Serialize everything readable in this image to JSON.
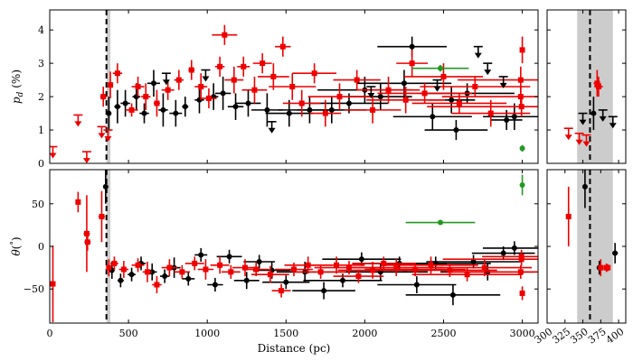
{
  "chart_data": {
    "type": "scatter",
    "description": "Four-panel scatter with error bars: polarization fraction p_d (%) and polarization angle theta (deg) versus distance (pc); right-hand panels zoom into 300-410 pc. Vertical dashed line marks cloud distance, grey band its uncertainty.",
    "xlabel": "Distance (pc)",
    "colors": {
      "black_series": "#000000",
      "red_series": "#ee0000",
      "green_series": "#229922",
      "band": "#cccccc"
    },
    "marker_line": {
      "x": 360,
      "band": [
        342,
        392
      ],
      "band_main": [
        360,
        385
      ]
    },
    "panels": [
      {
        "id": "top-main",
        "ylabel": "p_d (%)",
        "xlim": [
          0,
          3100
        ],
        "ylim": [
          0,
          4.6
        ],
        "xticks": [
          0,
          500,
          1000,
          1500,
          2000,
          2500,
          3000
        ],
        "xticklabels": [],
        "yticks": [
          0,
          1,
          2,
          3,
          4
        ],
        "yticklabels": [
          "0",
          "1",
          "2",
          "3",
          "4"
        ]
      },
      {
        "id": "top-zoom",
        "xlim": [
          300,
          410
        ],
        "ylim": [
          0,
          4.6
        ],
        "xticks": [
          300,
          350,
          400
        ],
        "xticklabels": [],
        "yticks": [
          0,
          1,
          2,
          3,
          4
        ],
        "yticklabels": []
      },
      {
        "id": "bottom-main",
        "ylabel": "theta (deg)",
        "xlim": [
          0,
          3100
        ],
        "ylim": [
          -90,
          90
        ],
        "xticks": [
          0,
          500,
          1000,
          1500,
          2000,
          2500,
          3000
        ],
        "xticklabels": [
          "0",
          "500",
          "1000",
          "1500",
          "2000",
          "2500",
          "3000"
        ],
        "yticks": [
          -50,
          0,
          50
        ],
        "yticklabels": [
          "−50",
          "0",
          "50"
        ]
      },
      {
        "id": "bottom-zoom",
        "xlim": [
          300,
          410
        ],
        "ylim": [
          -90,
          90
        ],
        "xticks": [
          300,
          325,
          350,
          375,
          400
        ],
        "xticklabels": [
          "300",
          "325",
          "350",
          "375",
          "400"
        ],
        "yticks": [
          -50,
          0,
          50
        ],
        "yticklabels": []
      }
    ],
    "pd_upper_limits_red": [
      [
        20,
        0.5
      ],
      [
        180,
        1.45
      ],
      [
        235,
        0.35
      ],
      [
        330,
        1.1
      ],
      [
        370,
        1.0
      ]
    ],
    "pd_upper_limits_black": [
      [
        740,
        2.7
      ],
      [
        990,
        2.8
      ],
      [
        1410,
        1.25
      ],
      [
        2040,
        2.3
      ],
      [
        2460,
        2.5
      ],
      [
        2720,
        3.5
      ],
      [
        2780,
        3.0
      ],
      [
        2880,
        2.6
      ]
    ],
    "pd_green": [
      [
        2480,
        2.85,
        180,
        0.1
      ],
      [
        3000,
        0.45,
        0,
        0.1
      ]
    ],
    "pd_red_points": [
      [
        340,
        2.0,
        20,
        0.3
      ],
      [
        385,
        2.35,
        15,
        0.4
      ],
      [
        430,
        2.7,
        30,
        0.3
      ],
      [
        520,
        1.6,
        40,
        0.2
      ],
      [
        560,
        2.3,
        40,
        0.3
      ],
      [
        610,
        2.0,
        30,
        0.4
      ],
      [
        680,
        1.8,
        20,
        0.4
      ],
      [
        750,
        2.2,
        40,
        0.3
      ],
      [
        820,
        2.5,
        30,
        0.3
      ],
      [
        900,
        2.8,
        20,
        0.3
      ],
      [
        960,
        2.3,
        40,
        0.4
      ],
      [
        1010,
        1.95,
        50,
        0.3
      ],
      [
        1080,
        2.9,
        30,
        0.3
      ],
      [
        1110,
        3.85,
        80,
        0.3
      ],
      [
        1170,
        2.5,
        60,
        0.4
      ],
      [
        1230,
        2.9,
        40,
        0.3
      ],
      [
        1300,
        2.2,
        80,
        0.4
      ],
      [
        1350,
        3.0,
        60,
        0.3
      ],
      [
        1420,
        2.6,
        100,
        0.4
      ],
      [
        1480,
        3.5,
        50,
        0.3
      ],
      [
        1540,
        2.3,
        150,
        0.4
      ],
      [
        1600,
        1.8,
        120,
        0.4
      ],
      [
        1680,
        2.7,
        140,
        0.3
      ],
      [
        1750,
        1.5,
        100,
        0.4
      ],
      [
        1840,
        2.0,
        200,
        0.4
      ],
      [
        1950,
        2.5,
        150,
        0.3
      ],
      [
        2050,
        1.6,
        180,
        0.4
      ],
      [
        2150,
        2.2,
        200,
        0.4
      ],
      [
        2260,
        1.9,
        250,
        0.4
      ],
      [
        2300,
        3.0,
        100,
        0.4
      ],
      [
        2380,
        2.1,
        300,
        0.3
      ],
      [
        2500,
        2.6,
        250,
        0.4
      ],
      [
        2600,
        1.8,
        300,
        0.3
      ],
      [
        2700,
        2.3,
        350,
        0.3
      ],
      [
        2800,
        1.5,
        250,
        0.4
      ],
      [
        2990,
        2.5,
        400,
        0.4
      ],
      [
        3000,
        3.4,
        10,
        0.4
      ],
      [
        2990,
        2.0,
        500,
        0.3
      ],
      [
        2995,
        1.7,
        600,
        0.3
      ]
    ],
    "pd_black_points": [
      [
        375,
        1.5,
        15,
        0.5
      ],
      [
        430,
        1.7,
        20,
        0.5
      ],
      [
        480,
        1.8,
        30,
        0.4
      ],
      [
        550,
        2.0,
        25,
        0.4
      ],
      [
        600,
        1.5,
        30,
        0.3
      ],
      [
        660,
        2.4,
        40,
        0.4
      ],
      [
        720,
        1.6,
        30,
        0.5
      ],
      [
        800,
        1.5,
        40,
        0.4
      ],
      [
        860,
        1.7,
        20,
        0.3
      ],
      [
        950,
        1.9,
        30,
        0.4
      ],
      [
        1040,
        2.0,
        30,
        0.4
      ],
      [
        1100,
        2.1,
        50,
        0.5
      ],
      [
        1180,
        1.7,
        50,
        0.4
      ],
      [
        1260,
        1.8,
        80,
        0.4
      ],
      [
        1380,
        1.6,
        100,
        0.5
      ],
      [
        1520,
        1.5,
        150,
        0.4
      ],
      [
        1650,
        1.6,
        200,
        0.4
      ],
      [
        1790,
        1.6,
        220,
        0.4
      ],
      [
        1900,
        1.8,
        250,
        0.3
      ],
      [
        2000,
        2.2,
        300,
        0.4
      ],
      [
        2100,
        2.0,
        200,
        0.4
      ],
      [
        2250,
        2.4,
        300,
        0.4
      ],
      [
        2300,
        3.5,
        220,
        0.3
      ],
      [
        2430,
        1.4,
        250,
        0.4
      ],
      [
        2550,
        1.9,
        150,
        0.4
      ],
      [
        2580,
        1.0,
        200,
        0.3
      ],
      [
        2650,
        2.1,
        300,
        0.3
      ],
      [
        2900,
        1.3,
        100,
        0.3
      ],
      [
        2950,
        1.4,
        200,
        0.4
      ]
    ],
    "pd_zoom_red": [
      [
        330,
        1.05,
        0,
        0.3,
        "lim"
      ],
      [
        345,
        0.9,
        0,
        0.3,
        "lim"
      ],
      [
        370,
        2.4,
        5,
        0.4,
        "pt"
      ],
      [
        372,
        2.3,
        6,
        0.3,
        "pt"
      ],
      [
        355,
        0.85,
        0,
        0.3,
        "lim"
      ]
    ],
    "pd_zoom_black": [
      [
        350,
        1.5,
        0,
        0.4,
        "lim"
      ],
      [
        365,
        1.5,
        2,
        0.5,
        "pt"
      ],
      [
        378,
        1.6,
        0,
        0.3,
        "lim"
      ],
      [
        392,
        1.4,
        0,
        0.4,
        "lim"
      ]
    ],
    "theta_red_points": [
      [
        20,
        -44,
        10,
        45
      ],
      [
        180,
        52,
        15,
        12
      ],
      [
        235,
        15,
        20,
        45
      ],
      [
        240,
        5,
        20,
        10
      ],
      [
        330,
        35,
        20,
        30
      ],
      [
        375,
        -25,
        15,
        10
      ],
      [
        410,
        -20,
        25,
        8
      ],
      [
        470,
        -27,
        30,
        10
      ],
      [
        560,
        -22,
        40,
        8
      ],
      [
        620,
        -30,
        30,
        12
      ],
      [
        680,
        -45,
        30,
        10
      ],
      [
        760,
        -25,
        50,
        10
      ],
      [
        840,
        -30,
        50,
        8
      ],
      [
        920,
        -20,
        60,
        8
      ],
      [
        990,
        -27,
        50,
        12
      ],
      [
        1080,
        -22,
        60,
        10
      ],
      [
        1150,
        -30,
        60,
        8
      ],
      [
        1240,
        -25,
        80,
        10
      ],
      [
        1310,
        -27,
        80,
        8
      ],
      [
        1400,
        -33,
        120,
        10
      ],
      [
        1470,
        -52,
        60,
        8
      ],
      [
        1550,
        -27,
        120,
        8
      ],
      [
        1640,
        -22,
        150,
        10
      ],
      [
        1720,
        -30,
        160,
        8
      ],
      [
        1820,
        -22,
        180,
        10
      ],
      [
        1900,
        -25,
        220,
        8
      ],
      [
        1960,
        -35,
        160,
        8
      ],
      [
        2050,
        -28,
        220,
        10
      ],
      [
        2120,
        -20,
        200,
        8
      ],
      [
        2200,
        -25,
        300,
        10
      ],
      [
        2320,
        -27,
        320,
        8
      ],
      [
        2420,
        -22,
        300,
        10
      ],
      [
        2540,
        -28,
        300,
        8
      ],
      [
        2650,
        -33,
        350,
        8
      ],
      [
        2760,
        -25,
        300,
        10
      ],
      [
        2990,
        -30,
        450,
        8
      ],
      [
        2995,
        -15,
        500,
        8
      ],
      [
        3000,
        -55,
        10,
        8
      ],
      [
        2995,
        -12,
        250,
        8
      ]
    ],
    "theta_black_points": [
      [
        355,
        70,
        8,
        20
      ],
      [
        395,
        -28,
        15,
        10
      ],
      [
        450,
        -40,
        20,
        8
      ],
      [
        520,
        -33,
        25,
        8
      ],
      [
        580,
        -20,
        30,
        8
      ],
      [
        650,
        -30,
        30,
        10
      ],
      [
        730,
        -35,
        30,
        8
      ],
      [
        790,
        -25,
        40,
        12
      ],
      [
        880,
        -38,
        40,
        8
      ],
      [
        960,
        -10,
        40,
        8
      ],
      [
        1050,
        -45,
        50,
        8
      ],
      [
        1140,
        -12,
        80,
        8
      ],
      [
        1250,
        -40,
        80,
        10
      ],
      [
        1330,
        -18,
        100,
        8
      ],
      [
        1410,
        -28,
        120,
        10
      ],
      [
        1500,
        -42,
        150,
        8
      ],
      [
        1620,
        -30,
        180,
        12
      ],
      [
        1740,
        -52,
        200,
        10
      ],
      [
        1860,
        -40,
        250,
        8
      ],
      [
        1980,
        -15,
        250,
        8
      ],
      [
        2100,
        -30,
        300,
        10
      ],
      [
        2220,
        -20,
        300,
        8
      ],
      [
        2330,
        -45,
        250,
        10
      ],
      [
        2450,
        -20,
        350,
        8
      ],
      [
        2560,
        -57,
        300,
        12
      ],
      [
        2690,
        -18,
        300,
        8
      ],
      [
        2780,
        -30,
        300,
        10
      ],
      [
        2880,
        -8,
        200,
        8
      ],
      [
        2950,
        -2,
        200,
        8
      ]
    ],
    "theta_green": [
      [
        2480,
        28,
        220,
        2
      ],
      [
        3000,
        72,
        0,
        12
      ]
    ],
    "theta_zoom_red": [
      [
        330,
        35,
        0,
        35
      ],
      [
        375,
        -25,
        0,
        10
      ],
      [
        383,
        -25,
        4,
        5
      ],
      [
        385,
        -25,
        3,
        4
      ]
    ],
    "theta_zoom_black": [
      [
        353,
        70,
        0,
        25
      ],
      [
        373,
        -25,
        0,
        8
      ],
      [
        395,
        -8,
        4,
        12
      ]
    ]
  }
}
